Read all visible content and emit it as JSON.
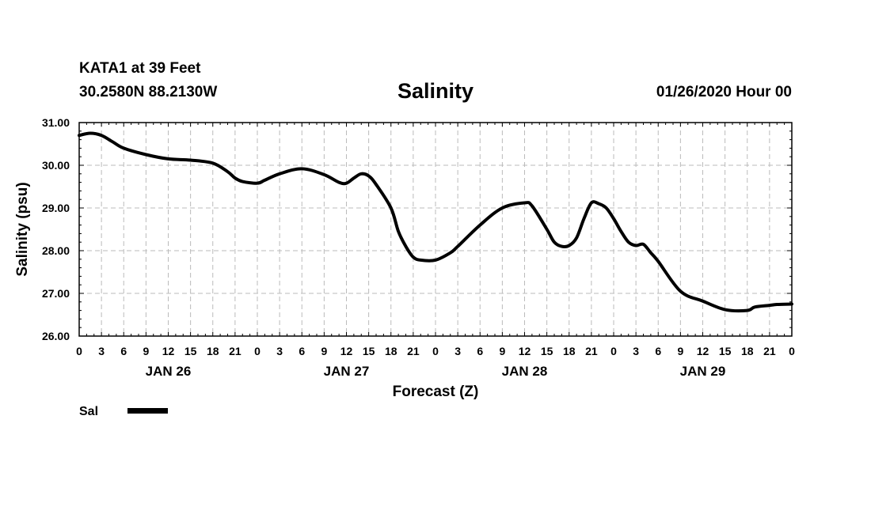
{
  "header": {
    "station": "KATA1 at 39 Feet",
    "coords": "30.2580N 88.2130W",
    "forecast_time": "01/26/2020 Hour 00"
  },
  "chart_data": {
    "type": "line",
    "title": "Salinity",
    "xlabel": "Forecast (Z)",
    "ylabel": "Salinity (psu)",
    "ylim": [
      26.0,
      31.0
    ],
    "yticks": [
      "26.00",
      "27.00",
      "28.00",
      "29.00",
      "30.00",
      "31.00"
    ],
    "xlim_hours": [
      0,
      96
    ],
    "x_tick_labels": [
      "0",
      "3",
      "6",
      "9",
      "12",
      "15",
      "18",
      "21",
      "0",
      "3",
      "6",
      "9",
      "12",
      "15",
      "18",
      "21",
      "0",
      "3",
      "6",
      "9",
      "12",
      "15",
      "18",
      "21",
      "0",
      "3",
      "6",
      "9",
      "12",
      "15",
      "18",
      "21",
      "0"
    ],
    "day_labels": [
      {
        "label": "JAN 26",
        "hour": 12
      },
      {
        "label": "JAN 27",
        "hour": 36
      },
      {
        "label": "JAN 28",
        "hour": 60
      },
      {
        "label": "JAN 29",
        "hour": 84
      }
    ],
    "grid": true,
    "legend": [
      {
        "name": "Sal",
        "color": "#000000"
      }
    ],
    "series": [
      {
        "name": "Sal",
        "x": [
          0,
          1.5,
          3,
          4.5,
          6,
          9,
          12,
          15,
          18,
          20,
          21,
          22,
          24,
          25,
          27,
          30,
          33,
          35,
          36,
          37,
          38,
          39,
          40,
          42,
          43,
          44,
          45,
          46,
          48,
          50,
          51,
          54,
          57,
          60,
          61,
          63,
          64,
          65,
          66,
          67,
          68,
          69,
          70,
          71,
          72,
          73,
          74,
          75,
          76,
          77,
          78,
          81,
          84,
          87,
          90,
          91,
          93,
          94,
          96
        ],
        "values": [
          30.7,
          30.75,
          30.7,
          30.55,
          30.4,
          30.25,
          30.15,
          30.12,
          30.05,
          29.85,
          29.7,
          29.62,
          29.58,
          29.65,
          29.8,
          29.92,
          29.78,
          29.6,
          29.58,
          29.7,
          29.8,
          29.75,
          29.55,
          29.0,
          28.45,
          28.1,
          27.85,
          27.78,
          27.78,
          27.95,
          28.1,
          28.6,
          29.0,
          29.12,
          29.05,
          28.5,
          28.2,
          28.1,
          28.12,
          28.3,
          28.75,
          29.12,
          29.1,
          29.0,
          28.75,
          28.45,
          28.2,
          28.12,
          28.15,
          27.95,
          27.75,
          27.05,
          26.82,
          26.62,
          26.6,
          26.68,
          26.72,
          26.74,
          26.75
        ]
      }
    ]
  }
}
